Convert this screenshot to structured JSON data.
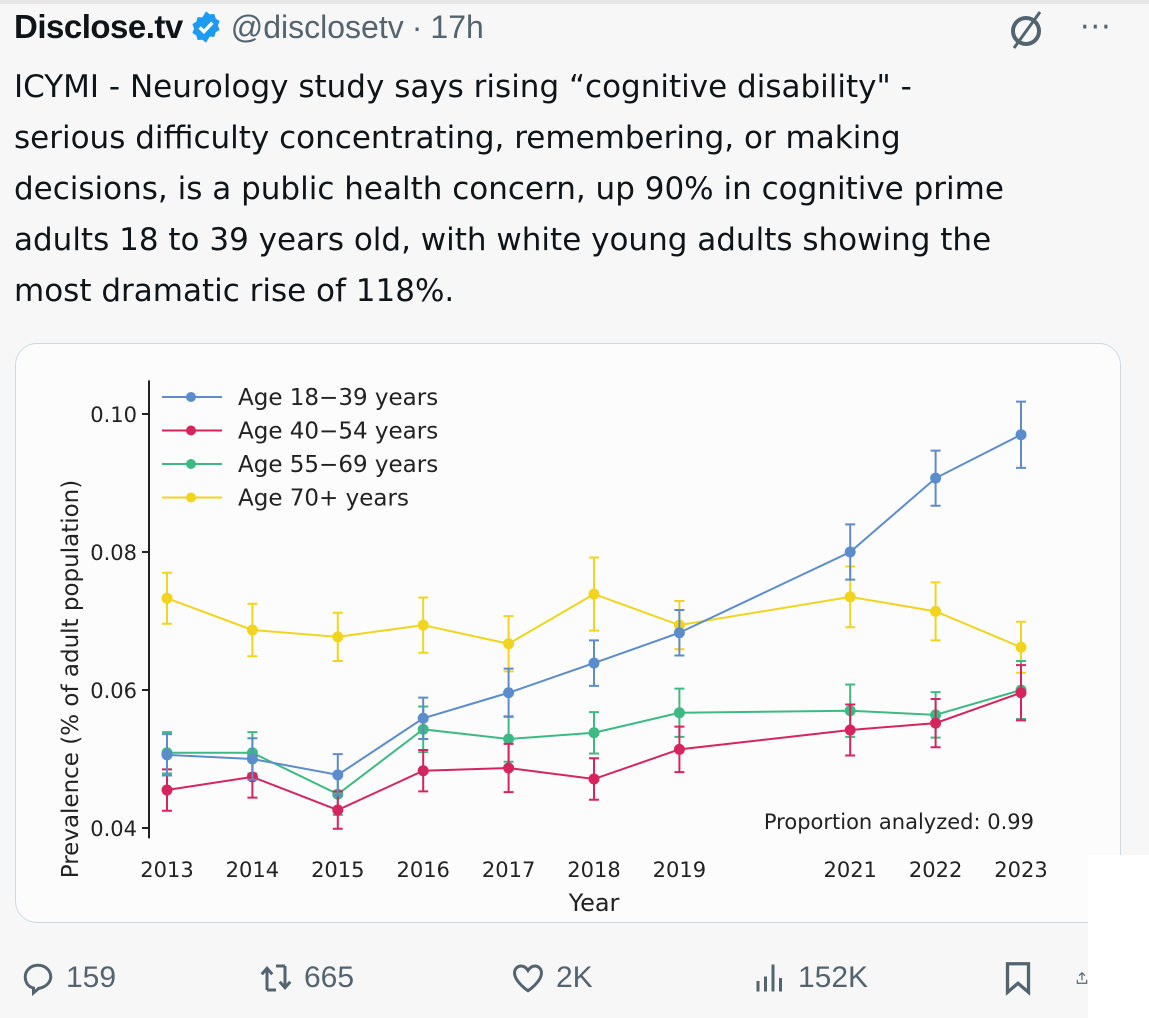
{
  "tweet": {
    "display_name": "Disclose.tv",
    "handle": "@disclosetv",
    "separator": "·",
    "time": "17h",
    "more": "···",
    "text": "ICYMI - Neurology study says rising “cognitive disability\" -\nserious difficulty concentrating, remembering, or making\ndecisions, is a public health concern, up 90% in cognitive prime\nadults 18 to 39 years old, with white young adults showing the\nmost dramatic rise of 118%."
  },
  "actions": {
    "replies": "159",
    "reposts": "665",
    "likes": "2K",
    "views": "152K"
  },
  "colors": {
    "blue": "#5b8ccc",
    "red": "#d6245e",
    "green": "#3dba84",
    "yellow": "#f2d41e",
    "verified": "#1d9bf0"
  },
  "chart_data": {
    "type": "line",
    "xlabel": "Year",
    "ylabel": "Prevalence (% of adult population)",
    "annotation": "Proportion analyzed: 0.99",
    "x": [
      2013,
      2014,
      2015,
      2016,
      2017,
      2018,
      2019,
      2021,
      2022,
      2023
    ],
    "x_ticks": [
      "2013",
      "2014",
      "2015",
      "2016",
      "2017",
      "2018",
      "2019",
      "2021",
      "2022",
      "2023"
    ],
    "y_ticks": [
      "0.04",
      "0.06",
      "0.08",
      "0.10"
    ],
    "ylim": [
      0.038,
      0.104
    ],
    "legend_position": "top-left",
    "series": [
      {
        "name": "Age 18−39 years",
        "color": "#5b8ccc",
        "values": [
          0.0506,
          0.05,
          0.0477,
          0.0559,
          0.0596,
          0.0639,
          0.0683,
          0.08,
          0.0907,
          0.097
        ],
        "err": [
          0.003,
          0.003,
          0.003,
          0.003,
          0.0035,
          0.0033,
          0.0033,
          0.004,
          0.004,
          0.0048
        ]
      },
      {
        "name": "Age 40−54 years",
        "color": "#d6245e",
        "values": [
          0.0455,
          0.0474,
          0.0426,
          0.0483,
          0.0487,
          0.0471,
          0.0514,
          0.0542,
          0.0552,
          0.0596
        ],
        "err": [
          0.003,
          0.003,
          0.0027,
          0.003,
          0.0035,
          0.003,
          0.0033,
          0.0037,
          0.0035,
          0.004
        ]
      },
      {
        "name": "Age 55−69 years",
        "color": "#3dba84",
        "values": [
          0.0509,
          0.0509,
          0.0449,
          0.0543,
          0.0529,
          0.0538,
          0.0567,
          0.057,
          0.0564,
          0.06
        ],
        "err": [
          0.003,
          0.003,
          0.003,
          0.0033,
          0.0033,
          0.003,
          0.0035,
          0.0038,
          0.0033,
          0.0042
        ]
      },
      {
        "name": "Age 70+ years",
        "color": "#f2d41e",
        "values": [
          0.0733,
          0.0687,
          0.0677,
          0.0694,
          0.0667,
          0.0739,
          0.0694,
          0.0735,
          0.0714,
          0.0662
        ],
        "err": [
          0.0037,
          0.0038,
          0.0035,
          0.004,
          0.004,
          0.0053,
          0.0035,
          0.0044,
          0.0042,
          0.0037
        ]
      }
    ]
  }
}
